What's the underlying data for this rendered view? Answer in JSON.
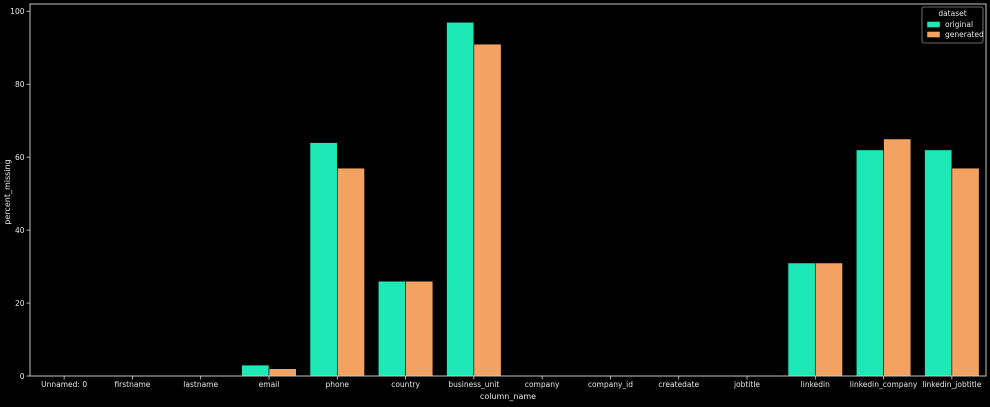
{
  "chart_data": {
    "type": "bar",
    "title": "",
    "xlabel": "column_name",
    "ylabel": "percent_missing",
    "ylim": [
      0,
      102
    ],
    "yticks": [
      0,
      20,
      40,
      60,
      80,
      100
    ],
    "grid": false,
    "legend": {
      "title": "dataset",
      "placement": "top-right"
    },
    "categories": [
      "Unnamed: 0",
      "firstname",
      "lastname",
      "email",
      "phone",
      "country",
      "business_unit",
      "company",
      "company_id",
      "createdate",
      "jobtitle",
      "linkedin",
      "linkedin_company",
      "linkedin_jobtitle"
    ],
    "series": [
      {
        "name": "original",
        "color": "#1de9b6",
        "values": [
          0,
          0,
          0,
          3,
          64,
          26,
          97,
          0,
          0,
          0,
          0,
          31,
          62,
          62
        ]
      },
      {
        "name": "generated",
        "color": "#f4a261",
        "values": [
          0,
          0,
          0,
          2,
          57,
          26,
          91,
          0,
          0,
          0,
          0,
          31,
          65,
          57
        ]
      }
    ]
  },
  "colors": {
    "background": "#000000",
    "axis": "#d9d9d9",
    "text": "#e6e6e6"
  }
}
